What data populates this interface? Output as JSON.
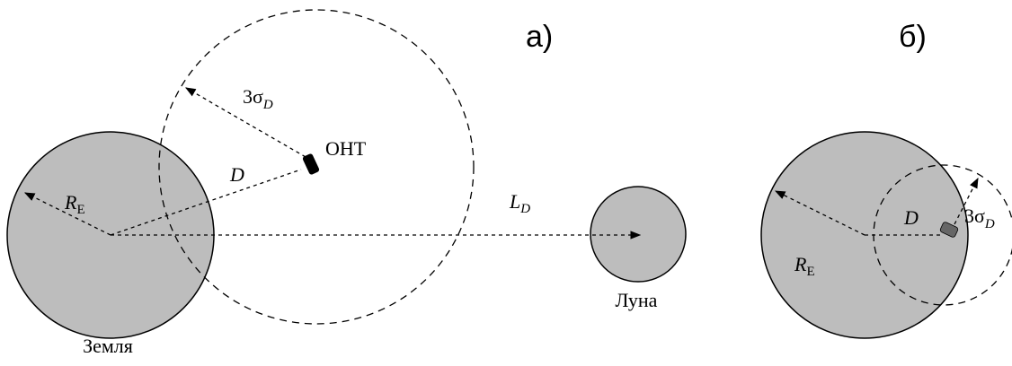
{
  "panels": [
    {
      "label": "а)",
      "earth": "Земля",
      "moon": "Луна",
      "object": "ОНТ",
      "earth_radius": {
        "symbol": "R",
        "subscript": "E"
      },
      "distance": "D",
      "moon_distance": {
        "symbol": "L",
        "subscript": "D"
      },
      "error_radius": {
        "prefix": "3σ",
        "subscript": "D"
      }
    },
    {
      "label": "б)",
      "earth_radius": {
        "symbol": "R",
        "subscript": "E"
      },
      "distance": "D",
      "error_radius": {
        "prefix": "3σ",
        "subscript": "D"
      }
    }
  ]
}
